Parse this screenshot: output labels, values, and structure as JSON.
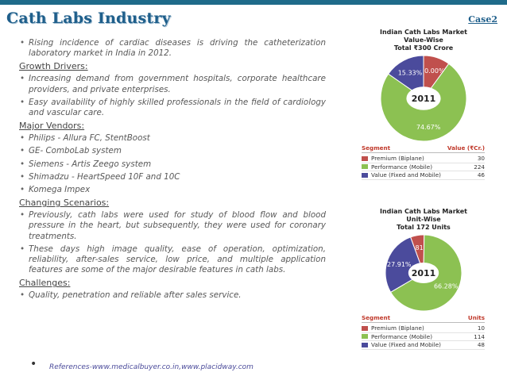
{
  "title": "Cath Labs Industry",
  "case_label": "Case2",
  "content": {
    "intro_bullet": "Rising incidence of cardiac diseases is driving the catheterization laboratory market in India in 2012.",
    "growth_heading": "Growth Drivers:",
    "growth_items": [
      "Increasing demand from government hospitals, corporate healthcare providers, and private enterprises.",
      "Easy availability of highly skilled professionals in the field of cardiology and vascular care."
    ],
    "vendors_heading": "Major Vendors:",
    "vendors": [
      "Philips - Allura FC, StentBoost",
      "GE- ComboLab system",
      "Siemens - Artis Zeego system",
      "Shimadzu - HeartSpeed 10F and 10C",
      "Komega Impex"
    ],
    "scenarios_heading": "Changing Scenarios:",
    "scenarios": [
      "Previously, cath labs were used for study of blood flow and blood pressure in the heart, but subsequently, they were used for coronary treatments.",
      "These days high image quality, ease of operation, optimization, reliability, after-sales service, low price, and multiple application features are some of the major desirable features in cath labs."
    ],
    "challenges_heading": "Challenges:",
    "challenges": [
      "Quality, penetration and reliable after sales service."
    ],
    "references": "References-www.medicalbuyer.co.in,www.placidway.com"
  },
  "colors": {
    "premium": "#c0504d",
    "performance": "#8cc152",
    "value": "#4b4b9c",
    "center": "#ffffff"
  },
  "chart_data": [
    {
      "type": "pie",
      "title_lines": [
        "Indian Cath Labs Market",
        "Value-Wise",
        "Total ₹300 Crore"
      ],
      "center_label": "2011",
      "legend_header": [
        "Segment",
        "Value (₹Cr.)"
      ],
      "slices": [
        {
          "name": "Premium (Biplane)",
          "value": 30,
          "percent_label": "10.00%"
        },
        {
          "name": "Performance (Mobile)",
          "value": 224,
          "percent_label": "74.67%"
        },
        {
          "name": "Value (Fixed and Mobile)",
          "value": 46,
          "percent_label": "15.33%"
        }
      ]
    },
    {
      "type": "pie",
      "title_lines": [
        "Indian Cath Labs Market",
        "Unit-Wise",
        "Total 172 Units"
      ],
      "center_label": "2011",
      "legend_header": [
        "Segment",
        "Units"
      ],
      "slices": [
        {
          "name": "Premium (Biplane)",
          "value": 10,
          "percent_label": "5.81%"
        },
        {
          "name": "Performance (Mobile)",
          "value": 114,
          "percent_label": "66.28%"
        },
        {
          "name": "Value (Fixed and Mobile)",
          "value": 48,
          "percent_label": "27.91%"
        }
      ]
    }
  ]
}
